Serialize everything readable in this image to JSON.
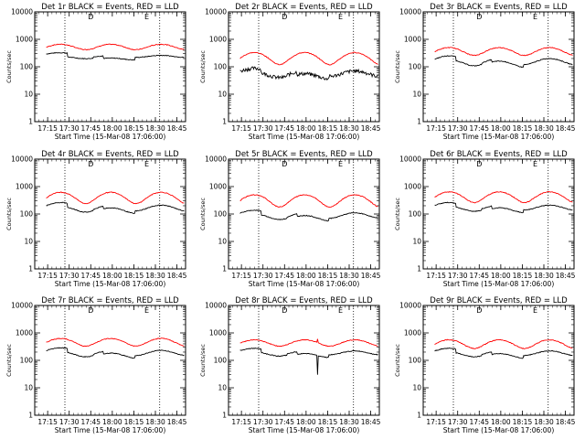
{
  "chart_data": {
    "type": "line",
    "grid": "3x3",
    "x_ticks": [
      "17:15",
      "17:30",
      "17:45",
      "18:00",
      "18:15",
      "18:30",
      "18:45"
    ],
    "x_tick_minutes_after_1700": [
      15,
      30,
      45,
      60,
      75,
      90,
      105
    ],
    "xlim_minutes_after_1700": [
      6,
      111
    ],
    "xlabel": "Start Time (15-Mar-08 17:06:00)",
    "ylabel": "Counts/sec",
    "yscale": "log",
    "ylim": [
      1,
      10000
    ],
    "y_ticks": [
      "1",
      "10",
      "100",
      "1000",
      "10000"
    ],
    "y_tick_values": [
      1,
      10,
      100,
      1000,
      10000
    ],
    "series_colors": {
      "events": "#000000",
      "lld": "#ff0000"
    },
    "vlines_minutes_after_1700": [
      27,
      93
    ],
    "markers": [
      "D",
      "E"
    ],
    "marker_minutes_after_1700": [
      45,
      84
    ],
    "panels": [
      {
        "title": "Det 1r BLACK = Events, RED = LLD",
        "events_base": 220,
        "lld_base": 420,
        "lld_peak": 660,
        "events_peak": 260,
        "steps": true
      },
      {
        "title": "Det 2r BLACK = Events, RED = LLD",
        "events_base": 45,
        "lld_base": 120,
        "lld_peak": 330,
        "events_peak": 70,
        "steps": true
      },
      {
        "title": "Det 3r BLACK = Events, RED = LLD",
        "events_base": 120,
        "lld_base": 260,
        "lld_peak": 500,
        "events_peak": 200,
        "steps": true
      },
      {
        "title": "Det 4r BLACK = Events, RED = LLD",
        "events_base": 130,
        "lld_base": 240,
        "lld_peak": 620,
        "events_peak": 210,
        "steps": true
      },
      {
        "title": "Det 5r BLACK = Events, RED = LLD",
        "events_base": 70,
        "lld_base": 180,
        "lld_peak": 500,
        "events_peak": 110,
        "steps": true
      },
      {
        "title": "Det 6r BLACK = Events, RED = LLD",
        "events_base": 140,
        "lld_base": 260,
        "lld_peak": 640,
        "events_peak": 210,
        "steps": true
      },
      {
        "title": "Det 7r BLACK = Events, RED = LLD",
        "events_base": 150,
        "lld_base": 330,
        "lld_peak": 630,
        "events_peak": 230,
        "steps": true
      },
      {
        "title": "Det 8r BLACK = Events, RED = LLD",
        "events_base": 160,
        "lld_base": 330,
        "lld_peak": 560,
        "events_peak": 220,
        "steps": true,
        "spike_minute": 68,
        "spike_low": 30
      },
      {
        "title": "Det 9r BLACK = Events, RED = LLD",
        "events_base": 150,
        "lld_base": 270,
        "lld_peak": 560,
        "events_peak": 220,
        "steps": true
      }
    ]
  }
}
